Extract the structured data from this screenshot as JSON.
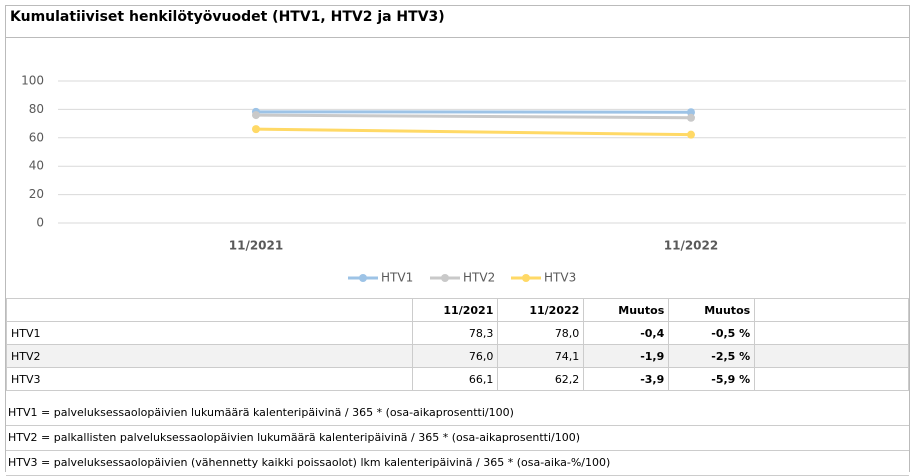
{
  "chart_data": {
    "type": "line",
    "title": "Kumulatiiviset henkilötyövuodet (HTV1, HTV2 ja HTV3)",
    "categories": [
      "11/2021",
      "11/2022"
    ],
    "series": [
      {
        "name": "HTV1",
        "color": "#9dc3e6",
        "values": [
          78.3,
          78.0
        ]
      },
      {
        "name": "HTV2",
        "color": "#c9c9c9",
        "values": [
          76.0,
          74.1
        ]
      },
      {
        "name": "HTV3",
        "color": "#ffd966",
        "values": [
          66.1,
          62.2
        ]
      }
    ],
    "ylim": [
      0,
      100
    ],
    "yticks": [
      0,
      20,
      40,
      60,
      80,
      100
    ],
    "grid": true,
    "legend": "bottom"
  },
  "table": {
    "header": [
      "11/2021",
      "11/2022",
      "Muutos",
      "Muutos"
    ],
    "rows": [
      [
        "HTV1",
        "78,3",
        "78,0",
        "-0,4",
        "-0,5 %"
      ],
      [
        "HTV2",
        "76,0",
        "74,1",
        "-1,9",
        "-2,5 %"
      ],
      [
        "HTV3",
        "66,1",
        "62,2",
        "-3,9",
        "-5,9 %"
      ]
    ]
  },
  "notes": [
    "HTV1 = palveluksessaolopäivien lukumäärä kalenteripäivinä / 365 * (osa-aikaprosentti/100)",
    "HTV2 = palkallisten palveluksessaolopäivien lukumäärä kalenteripäivinä / 365 * (osa-aikaprosentti/100)",
    "HTV3 = palveluksessaolopäivien (vähennetty kaikki poissaolot) lkm kalenteripäivinä / 365 * (osa-aika-%/100)"
  ]
}
